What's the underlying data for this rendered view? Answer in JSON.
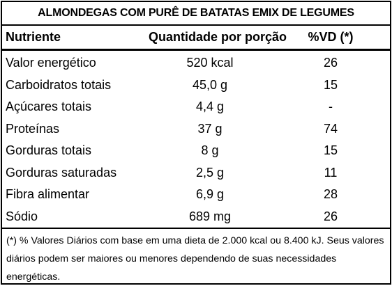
{
  "title": "ALMONDEGAS COM PURÊ DE BATATAS EMIX DE LEGUMES",
  "table": {
    "headers": [
      "Nutriente",
      "Quantidade por porção",
      "%VD (*)"
    ],
    "rows": [
      [
        "Valor energético",
        "520 kcal",
        "26"
      ],
      [
        "Carboidratos totais",
        "45,0 g",
        "15"
      ],
      [
        "Açúcares totais",
        "4,4 g",
        "-"
      ],
      [
        "Proteínas",
        "37 g",
        "74"
      ],
      [
        "Gorduras totais",
        "8 g",
        "15"
      ],
      [
        "Gorduras saturadas",
        "2,5 g",
        "11"
      ],
      [
        "Fibra alimentar",
        "6,9 g",
        "28"
      ],
      [
        "Sódio",
        "689 mg",
        "26"
      ]
    ]
  },
  "footnotes": [
    "(*) % Valores Diários com base em uma dieta de 2.000 kcal ou 8.400 kJ.",
    "Seus valores diários podem ser maiores ou menores dependendo de suas necessidades energéticas."
  ]
}
